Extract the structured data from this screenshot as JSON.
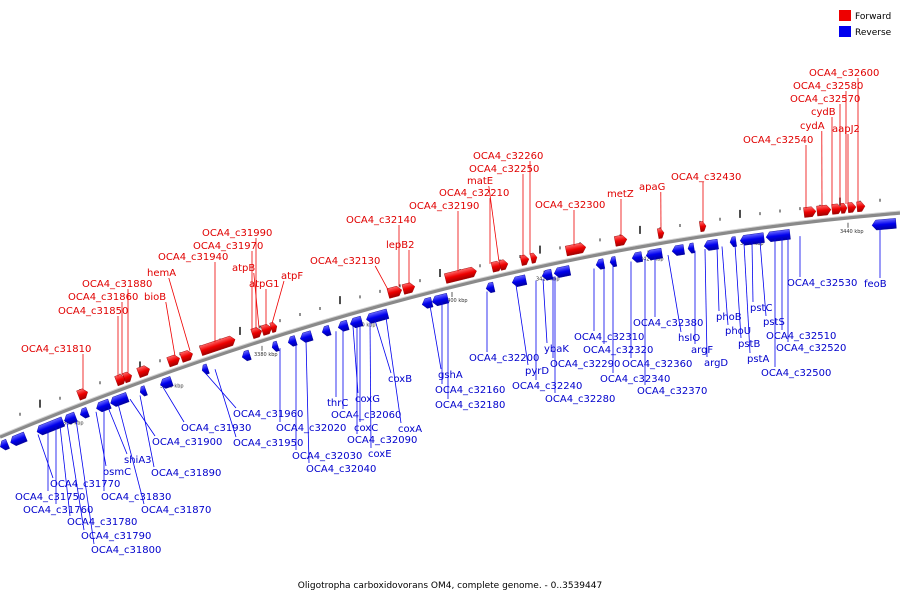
{
  "legend": {
    "forward_label": "Forward",
    "reverse_label": "Reverse",
    "forward_color": "#ee0000",
    "reverse_color": "#0000ee"
  },
  "caption": "Oligotropha carboxidovorans OM4, complete genome. - 0..3539447",
  "ticks": [
    "3360 kbp",
    "3370 kbp",
    "3380 kbp",
    "3390 kbp",
    "3400 kbp",
    "3410 kbp",
    "3420 kbp",
    "3430 kbp",
    "3440 kbp"
  ],
  "forward_genes": [
    "OCA4_c31810",
    "OCA4_c31850",
    "OCA4_c31860",
    "OCA4_c31880",
    "bioB",
    "hemA",
    "OCA4_c31940",
    "OCA4_c31970",
    "OCA4_c31990",
    "atpB",
    "atpG1",
    "atpF",
    "OCA4_c32130",
    "OCA4_c32140",
    "lepB2",
    "OCA4_c32190",
    "OCA4_c32210",
    "matE",
    "OCA4_c32250",
    "OCA4_c32260",
    "OCA4_c32300",
    "metZ",
    "apaG",
    "OCA4_c32430",
    "OCA4_c32540",
    "cydA",
    "cydB",
    "aapJ2",
    "OCA4_c32570",
    "OCA4_c32580",
    "OCA4_c32600"
  ],
  "reverse_genes": [
    "OCA4_c31770",
    "OCA4_c31750",
    "OCA4_c31760",
    "OCA4_c31780",
    "OCA4_c31790",
    "OCA4_c31800",
    "osmC",
    "shiA3",
    "OCA4_c31830",
    "OCA4_c31870",
    "OCA4_c31890",
    "OCA4_c31900",
    "OCA4_c31930",
    "OCA4_c31960",
    "OCA4_c31950",
    "OCA4_c32020",
    "OCA4_c32030",
    "OCA4_c32040",
    "thrC",
    "coxG",
    "OCA4_c32060",
    "coxC",
    "OCA4_c32090",
    "coxE",
    "coxA",
    "coxB",
    "gshA",
    "OCA4_c32160",
    "OCA4_c32180",
    "OCA4_c32200",
    "pyrD",
    "OCA4_c32240",
    "OCA4_c32280",
    "ybaK",
    "OCA4_c32290",
    "OCA4_c32310",
    "OCA4_c32320",
    "OCA4_c32340",
    "OCA4_c32360",
    "OCA4_c32370",
    "OCA4_c32380",
    "hslO",
    "argF",
    "argD",
    "phoB",
    "phoU",
    "pstB",
    "pstA",
    "pstC",
    "pstS",
    "OCA4_c32510",
    "OCA4_c32520",
    "OCA4_c32500",
    "OCA4_c32530",
    "feoB"
  ]
}
